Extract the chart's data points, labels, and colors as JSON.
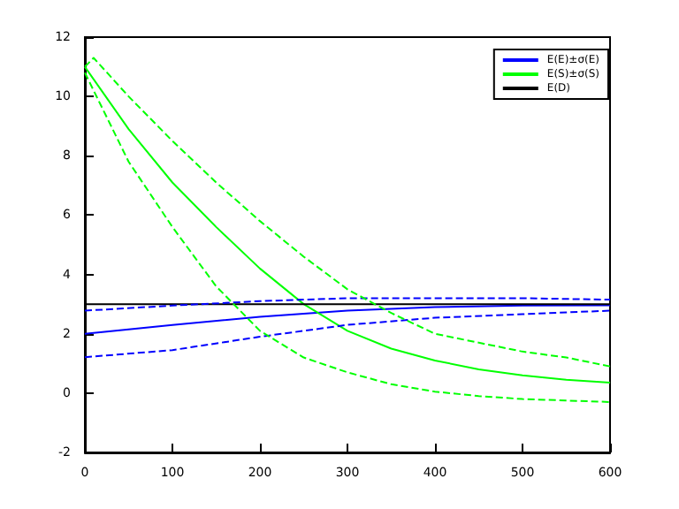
{
  "chart_data": {
    "type": "line",
    "marker": "none",
    "grid": false,
    "legend": "top right",
    "xlim": [
      0,
      600
    ],
    "xticks": [
      0,
      100,
      200,
      300,
      400,
      500,
      600
    ],
    "ylim": [
      -2,
      12
    ],
    "yticks": [
      -2,
      0,
      2,
      4,
      6,
      8,
      10,
      12
    ],
    "series": [
      {
        "name": "E(E)±σ(E)",
        "color": "#0000ff",
        "x": [
          0,
          100,
          200,
          300,
          400,
          500,
          600
        ],
        "values": [
          2.0,
          2.3,
          2.57,
          2.78,
          2.9,
          2.95,
          2.96
        ]
      },
      {
        "name": "E(S)±σ(S)",
        "color": "#00ff00",
        "x": [
          0,
          50,
          100,
          150,
          200,
          250,
          300,
          350,
          400,
          450,
          500,
          550,
          600
        ],
        "values": [
          11.0,
          8.9,
          7.1,
          5.6,
          4.2,
          3.0,
          2.1,
          1.5,
          1.1,
          0.8,
          0.6,
          0.45,
          0.35
        ]
      },
      {
        "name": "E(D)",
        "color": "#000000",
        "x": [
          0,
          600
        ],
        "values": [
          3.0,
          3.0
        ]
      },
      {
        "color": "#0000ff",
        "line_style": "dashed",
        "x": [
          0,
          100,
          200,
          300,
          400,
          500,
          600
        ],
        "values": [
          2.78,
          2.95,
          3.1,
          3.2,
          3.2,
          3.2,
          3.15
        ]
      },
      {
        "color": "#0000ff",
        "line_style": "dashed",
        "x": [
          0,
          100,
          200,
          300,
          400,
          500,
          600
        ],
        "values": [
          1.21,
          1.45,
          1.9,
          2.3,
          2.54,
          2.66,
          2.78
        ]
      },
      {
        "color": "#00ff00",
        "line_style": "dashed",
        "x": [
          0,
          10,
          50,
          100,
          150,
          200,
          250,
          300,
          350,
          400,
          450,
          500,
          550,
          600
        ],
        "values": [
          11.0,
          11.3,
          10.0,
          8.5,
          7.1,
          5.8,
          4.6,
          3.5,
          2.7,
          2.0,
          1.7,
          1.4,
          1.2,
          0.9
        ]
      },
      {
        "color": "#00ff00",
        "line_style": "dashed",
        "x": [
          0,
          50,
          100,
          150,
          200,
          250,
          300,
          350,
          400,
          450,
          500,
          550,
          600
        ],
        "values": [
          10.8,
          7.8,
          5.6,
          3.6,
          2.1,
          1.2,
          0.7,
          0.3,
          0.05,
          -0.1,
          -0.2,
          -0.25,
          -0.3
        ]
      }
    ]
  }
}
